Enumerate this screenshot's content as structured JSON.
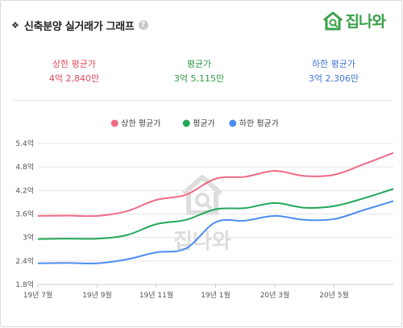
{
  "header": {
    "title": "신축분양 실거래가 그래프",
    "help_glyph": "?",
    "logo_text": "집나와"
  },
  "stats": {
    "upper": {
      "label": "상한 평균가",
      "value": "4억 2,840만"
    },
    "avg": {
      "label": "평균가",
      "value": "3억 5,115만"
    },
    "lower": {
      "label": "하한 평균가",
      "value": "3억 2,306만"
    }
  },
  "colors": {
    "upper": "#ef6a86",
    "avg": "#22a75a",
    "lower": "#4d8df0",
    "grid": "#e4e4e4"
  },
  "chart_data": {
    "type": "line",
    "legend_position": "top-center",
    "grid": "horizontal",
    "ylim": [
      1.8,
      5.4
    ],
    "y_ticks": [
      5.4,
      4.8,
      4.2,
      3.6,
      3.0,
      2.4,
      1.8
    ],
    "y_tick_labels": [
      "5.4억",
      "4.8억",
      "4.2억",
      "3.6억",
      "3억",
      "2.4억",
      "1.8억"
    ],
    "x_tick_labels": [
      "19년 7월",
      "19년 9월",
      "19년 11월",
      "19년 1월",
      "20년 3월",
      "20년 5월"
    ],
    "x_tick_index": [
      0,
      2,
      4,
      6,
      8,
      10
    ],
    "x_count": 13,
    "series": [
      {
        "name": "상한 평균가",
        "key": "upper",
        "values": [
          3.55,
          3.56,
          3.55,
          3.67,
          3.96,
          4.09,
          4.5,
          4.55,
          4.7,
          4.57,
          4.6,
          4.87,
          5.16
        ]
      },
      {
        "name": "평균가",
        "key": "avg",
        "values": [
          2.96,
          2.97,
          2.97,
          3.06,
          3.34,
          3.45,
          3.72,
          3.75,
          3.88,
          3.76,
          3.8,
          4.0,
          4.24
        ]
      },
      {
        "name": "하한 평균가",
        "key": "lower",
        "values": [
          2.34,
          2.35,
          2.34,
          2.44,
          2.62,
          2.72,
          3.39,
          3.43,
          3.55,
          3.45,
          3.47,
          3.7,
          3.93
        ]
      }
    ]
  }
}
